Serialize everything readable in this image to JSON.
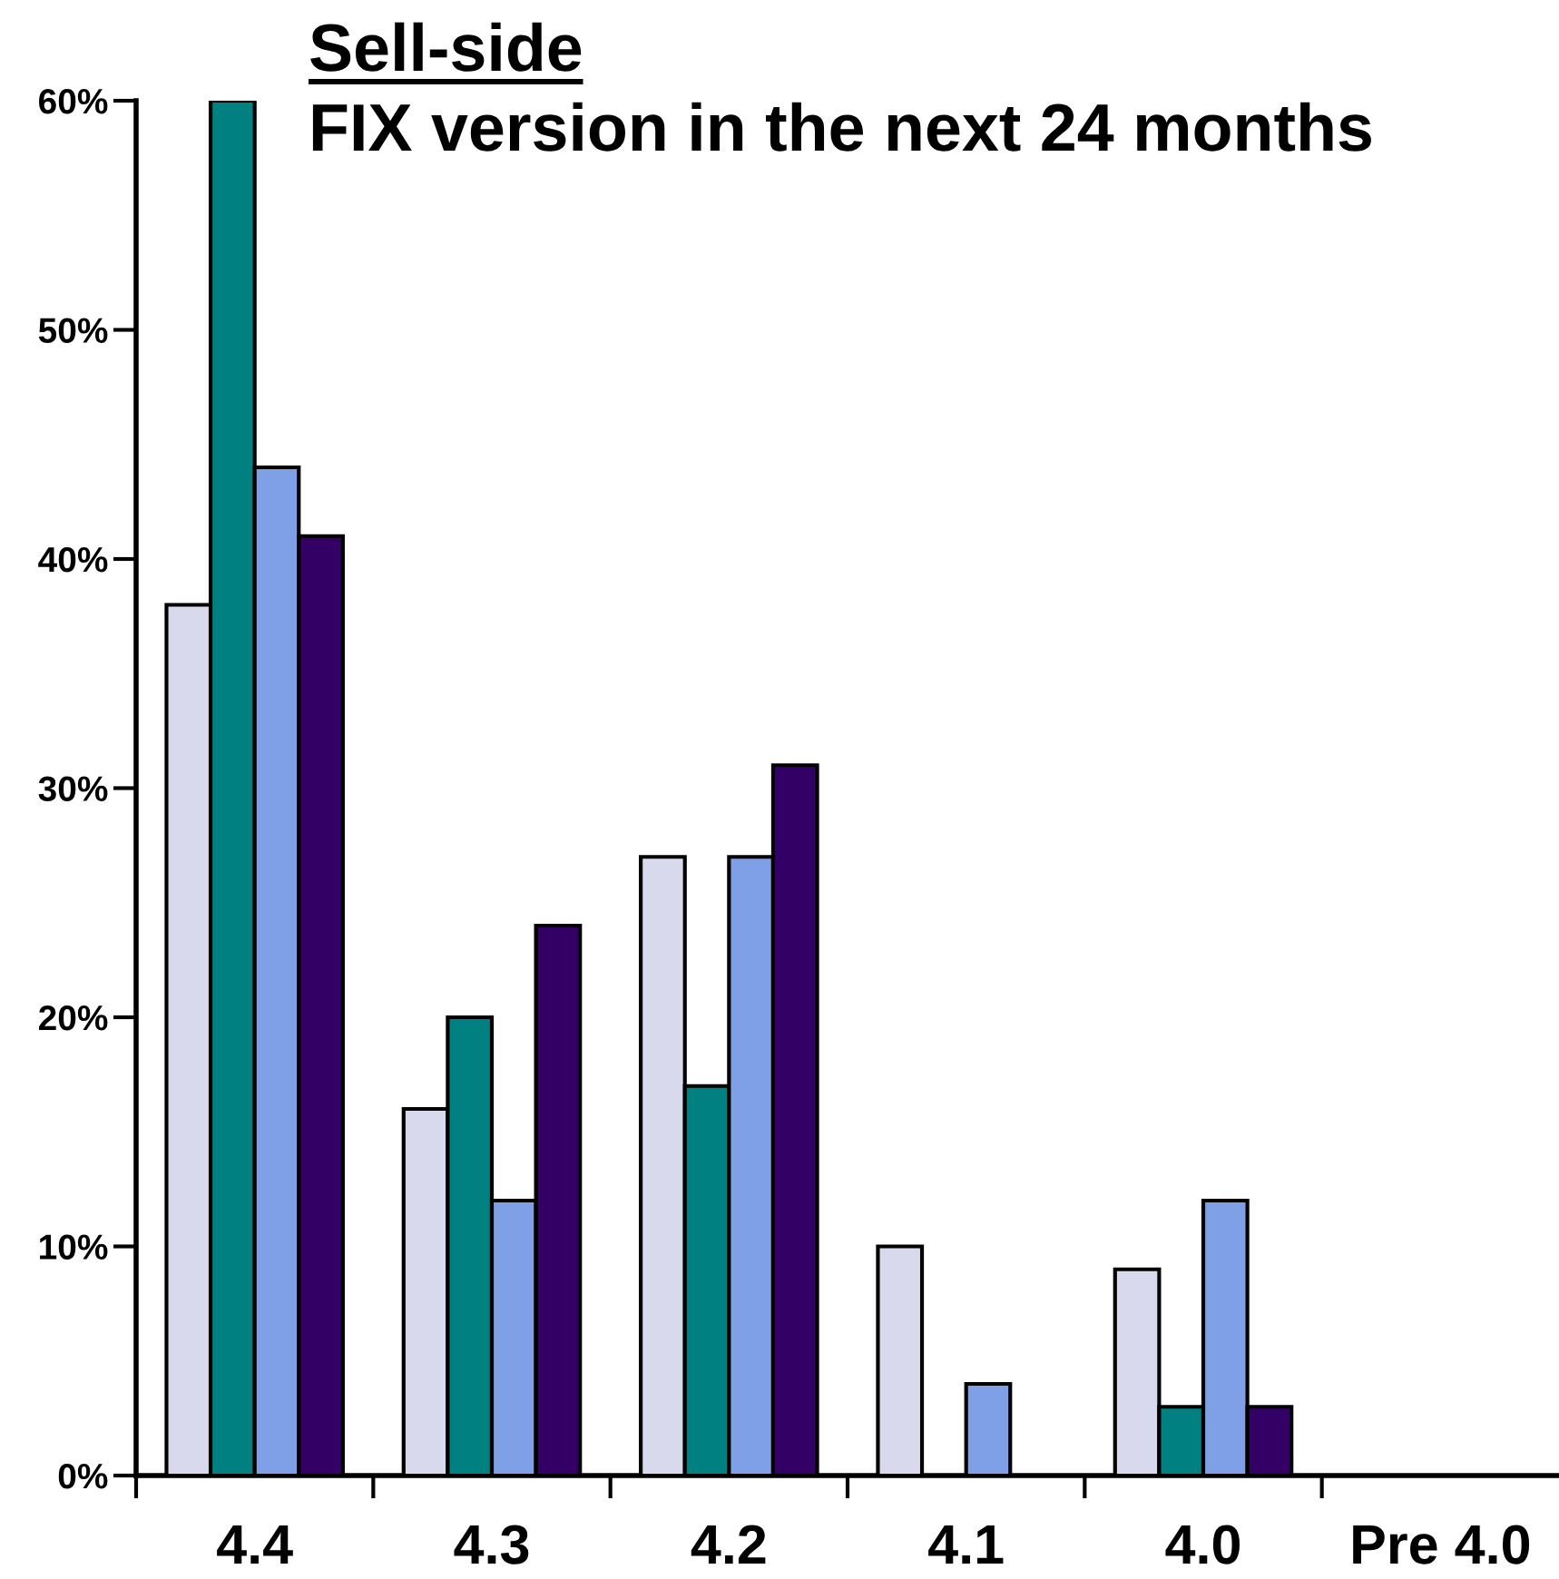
{
  "chart_data": {
    "type": "bar",
    "title": "Sell-side",
    "subtitle": "FIX version in the next 24 months",
    "categories": [
      "4.4",
      "4.3",
      "4.2",
      "4.1",
      "4.0",
      "Pre 4.0"
    ],
    "series": [
      {
        "color": "#d9d9ee",
        "values": [
          38,
          16,
          27,
          10,
          9,
          0
        ]
      },
      {
        "color": "#008080",
        "values": [
          60,
          20,
          17,
          0,
          3,
          0
        ]
      },
      {
        "color": "#7f9fe6",
        "values": [
          44,
          12,
          27,
          4,
          12,
          0
        ]
      },
      {
        "color": "#330066",
        "values": [
          41,
          24,
          31,
          0,
          3,
          0
        ]
      }
    ],
    "ylim": [
      0,
      60
    ],
    "yticks": [
      {
        "value": 0,
        "label": "0%"
      },
      {
        "value": 10,
        "label": "10%"
      },
      {
        "value": 20,
        "label": "20%"
      },
      {
        "value": 30,
        "label": "30%"
      },
      {
        "value": 40,
        "label": "40%"
      },
      {
        "value": 50,
        "label": "50%"
      },
      {
        "value": 60,
        "label": "60%"
      }
    ],
    "grid": false
  }
}
